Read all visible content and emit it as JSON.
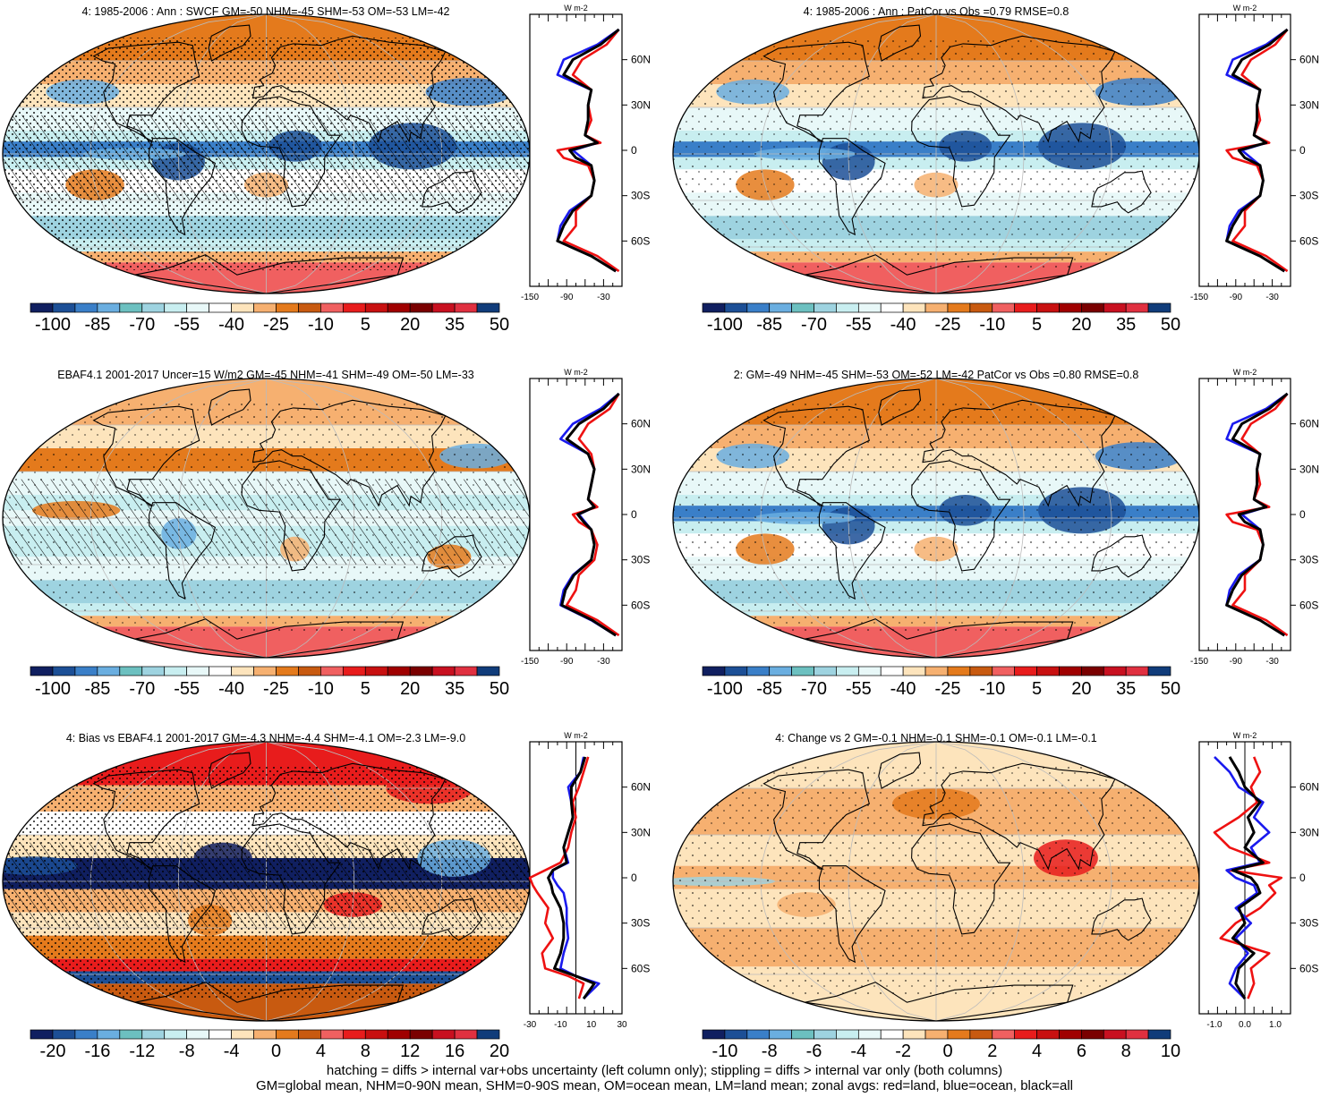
{
  "panels": [
    {
      "title": "4: 1985-2006 : Ann : SWCF GM=-50 NHM=-45 SHM=-53 OM=-53 LM=-42",
      "colorbar": {
        "palette": "main",
        "labels": [
          "-100",
          "-85",
          "-70",
          "-55",
          "-40",
          "-25",
          "-10",
          "5",
          "20",
          "35",
          "50"
        ]
      },
      "fill": "base_model",
      "hatch": true,
      "stipple": "dense",
      "zonal": {
        "unit": "W m-2",
        "xticks": [
          "-150",
          "-90",
          "-30"
        ],
        "xrange": [
          -150,
          0
        ],
        "zero_line": false,
        "lat": [
          80,
          70,
          60,
          50,
          40,
          30,
          20,
          10,
          5,
          0,
          -5,
          -10,
          -20,
          -30,
          -40,
          -50,
          -60,
          -70,
          -80
        ],
        "land": [
          -5,
          -25,
          -65,
          -80,
          -50,
          -55,
          -50,
          -60,
          -35,
          -105,
          -95,
          -55,
          -45,
          -50,
          -75,
          -75,
          -95,
          -40,
          -5
        ],
        "ocean": [
          -5,
          -40,
          -95,
          -105,
          -50,
          -55,
          -55,
          -60,
          -40,
          -80,
          -65,
          -50,
          -45,
          -50,
          -85,
          -100,
          -105,
          -50,
          -10
        ],
        "all": [
          -5,
          -35,
          -80,
          -95,
          -50,
          -55,
          -55,
          -60,
          -40,
          -85,
          -75,
          -50,
          -45,
          -50,
          -80,
          -95,
          -105,
          -50,
          -10
        ]
      }
    },
    {
      "title": "4: 1985-2006 : Ann : PatCor vs Obs =0.79 RMSE=0.8",
      "colorbar": {
        "palette": "main",
        "labels": [
          "-100",
          "-85",
          "-70",
          "-55",
          "-40",
          "-25",
          "-10",
          "5",
          "20",
          "35",
          "50"
        ]
      },
      "fill": "base_model",
      "hatch": false,
      "stipple": "sparse",
      "zonal": {
        "unit": "W m-2",
        "xticks": [
          "-150",
          "-90",
          "-30"
        ],
        "xrange": [
          -150,
          0
        ],
        "zero_line": false,
        "lat": [
          80,
          70,
          60,
          50,
          40,
          30,
          20,
          10,
          5,
          0,
          -5,
          -10,
          -20,
          -30,
          -40,
          -50,
          -60,
          -70,
          -80
        ],
        "land": [
          -5,
          -25,
          -65,
          -80,
          -50,
          -55,
          -50,
          -60,
          -35,
          -105,
          -95,
          -55,
          -45,
          -50,
          -75,
          -75,
          -95,
          -40,
          -5
        ],
        "ocean": [
          -5,
          -40,
          -95,
          -105,
          -50,
          -55,
          -55,
          -60,
          -40,
          -80,
          -65,
          -50,
          -45,
          -50,
          -85,
          -100,
          -105,
          -50,
          -10
        ],
        "all": [
          -5,
          -35,
          -80,
          -95,
          -50,
          -55,
          -55,
          -60,
          -40,
          -85,
          -75,
          -50,
          -45,
          -50,
          -80,
          -95,
          -105,
          -50,
          -10
        ]
      }
    },
    {
      "title": "EBAF4.1 2001-2017 Uncer=15 W/m2 GM=-45 NHM=-41 SHM=-49 OM=-50 LM=-33",
      "colorbar": {
        "palette": "main",
        "labels": [
          "-100",
          "-85",
          "-70",
          "-55",
          "-40",
          "-25",
          "-10",
          "5",
          "20",
          "35",
          "50"
        ]
      },
      "fill": "obs",
      "hatch": true,
      "stipple": "sparse",
      "zonal": {
        "unit": "W m-2",
        "xticks": [
          "-150",
          "-90",
          "-30"
        ],
        "xrange": [
          -150,
          0
        ],
        "zero_line": false,
        "lat": [
          80,
          70,
          60,
          50,
          40,
          30,
          20,
          10,
          5,
          0,
          -5,
          -10,
          -20,
          -30,
          -40,
          -50,
          -60,
          -70,
          -80
        ],
        "land": [
          -5,
          -20,
          -55,
          -70,
          -50,
          -45,
          -50,
          -55,
          -40,
          -80,
          -70,
          -50,
          -40,
          -45,
          -70,
          -75,
          -90,
          -40,
          -5
        ],
        "ocean": [
          -5,
          -35,
          -80,
          -100,
          -55,
          -45,
          -50,
          -55,
          -45,
          -70,
          -60,
          -50,
          -45,
          -50,
          -80,
          -95,
          -100,
          -50,
          -10
        ],
        "all": [
          -5,
          -30,
          -70,
          -90,
          -55,
          -45,
          -50,
          -55,
          -45,
          -72,
          -62,
          -50,
          -45,
          -50,
          -78,
          -92,
          -98,
          -48,
          -10
        ]
      }
    },
    {
      "title": "2: GM=-49 NHM=-45 SHM=-53 OM=-52 LM=-42 PatCor vs Obs =0.80 RMSE=0.8",
      "colorbar": {
        "palette": "main",
        "labels": [
          "-100",
          "-85",
          "-70",
          "-55",
          "-40",
          "-25",
          "-10",
          "5",
          "20",
          "35",
          "50"
        ]
      },
      "fill": "base_model",
      "hatch": false,
      "stipple": "sparse",
      "zonal": {
        "unit": "W m-2",
        "xticks": [
          "-150",
          "-90",
          "-30"
        ],
        "xrange": [
          -150,
          0
        ],
        "zero_line": false,
        "lat": [
          80,
          70,
          60,
          50,
          40,
          30,
          20,
          10,
          5,
          0,
          -5,
          -10,
          -20,
          -30,
          -40,
          -50,
          -60,
          -70,
          -80
        ],
        "land": [
          -5,
          -25,
          -65,
          -80,
          -50,
          -55,
          -50,
          -60,
          -35,
          -105,
          -95,
          -55,
          -45,
          -50,
          -75,
          -75,
          -95,
          -40,
          -5
        ],
        "ocean": [
          -5,
          -40,
          -95,
          -105,
          -50,
          -55,
          -55,
          -60,
          -40,
          -80,
          -65,
          -50,
          -45,
          -50,
          -85,
          -100,
          -105,
          -50,
          -10
        ],
        "all": [
          -5,
          -35,
          -80,
          -95,
          -50,
          -55,
          -55,
          -60,
          -40,
          -85,
          -75,
          -50,
          -45,
          -50,
          -80,
          -95,
          -105,
          -50,
          -10
        ]
      }
    },
    {
      "title": "4: Bias vs EBAF4.1 2001-2017 GM=-4.3 NHM=-4.4 SHM=-4.1 OM=-2.3 LM=-9.0",
      "colorbar": {
        "palette": "main",
        "labels": [
          "-20",
          "-16",
          "-12",
          "-8",
          "-4",
          "0",
          "4",
          "8",
          "12",
          "16",
          "20"
        ]
      },
      "fill": "bias",
      "hatch": true,
      "stipple": "dense",
      "zonal": {
        "unit": "W m-2",
        "xticks": [
          "-30",
          "-10",
          "10",
          "30"
        ],
        "xrange": [
          -30,
          30
        ],
        "zero_line": true,
        "lat": [
          80,
          70,
          60,
          50,
          40,
          30,
          20,
          10,
          5,
          0,
          -5,
          -10,
          -20,
          -30,
          -40,
          -50,
          -60,
          -65,
          -70,
          -80
        ],
        "land": [
          8,
          5,
          2,
          -2,
          0,
          -3,
          -5,
          -10,
          -20,
          -30,
          -28,
          -25,
          -18,
          -20,
          -15,
          -22,
          -20,
          -5,
          5,
          2
        ],
        "ocean": [
          5,
          3,
          -5,
          -3,
          -2,
          -5,
          -8,
          -5,
          -15,
          -15,
          -12,
          -8,
          -6,
          -6,
          -5,
          -8,
          -10,
          0,
          15,
          5
        ],
        "all": [
          6,
          3,
          -3,
          -3,
          -2,
          -5,
          -8,
          -6,
          -15,
          -18,
          -16,
          -15,
          -10,
          -8,
          -8,
          -10,
          -14,
          0,
          12,
          5
        ]
      }
    },
    {
      "title": "4: Change vs 2 GM=-0.1 NHM=-0.1 SHM=-0.1 OM=-0.1 LM=-0.1",
      "colorbar": {
        "palette": "main",
        "labels": [
          "-10",
          "-8",
          "-6",
          "-4",
          "-2",
          "0",
          "2",
          "4",
          "6",
          "8",
          "10"
        ]
      },
      "fill": "change",
      "hatch": false,
      "stipple": "sparse",
      "zonal": {
        "unit": "W m-2",
        "xticks": [
          "-1.0",
          "0.0",
          "1.0"
        ],
        "xrange": [
          -1.5,
          1.5
        ],
        "zero_line": true,
        "lat": [
          80,
          70,
          60,
          50,
          40,
          30,
          20,
          10,
          5,
          0,
          -5,
          -10,
          -20,
          -30,
          -40,
          -50,
          -60,
          -70,
          -80
        ],
        "land": [
          0.3,
          0.5,
          0.2,
          0.4,
          -0.2,
          -1.0,
          -0.5,
          0.8,
          -0.5,
          1.2,
          0.8,
          1.0,
          0.5,
          -0.3,
          -0.8,
          0.8,
          0.2,
          0.3,
          0.1
        ],
        "ocean": [
          -1.0,
          -0.5,
          -0.2,
          0.6,
          0.3,
          0.8,
          0.2,
          0.5,
          -0.6,
          -0.3,
          0.3,
          0.4,
          -0.3,
          0.2,
          -0.3,
          0.1,
          -0.3,
          -0.5,
          0.0
        ],
        "all": [
          -0.5,
          -0.2,
          0.0,
          0.5,
          0.1,
          0.3,
          0.0,
          0.6,
          -0.4,
          0.2,
          0.4,
          0.5,
          -0.2,
          0.0,
          -0.4,
          0.3,
          -0.2,
          -0.3,
          0.0
        ]
      }
    }
  ],
  "lat_labels": [
    "60N",
    "30N",
    "0",
    "30S",
    "60S"
  ],
  "colors": {
    "land": "#ee1111",
    "ocean": "#1a1aee",
    "all": "#000000",
    "main_palette": [
      "#101f60",
      "#1c4f96",
      "#3a7fc8",
      "#6aaee0",
      "#6cc0c0",
      "#9ed3e0",
      "#c8eef0",
      "#e8f8f8",
      "#ffffff",
      "#fde4bc",
      "#f6b070",
      "#e47a1c",
      "#c85a10",
      "#f06060",
      "#e81c1c",
      "#c81010",
      "#a00000",
      "#7a0000",
      "#c81020",
      "#e03040",
      "#103c7a"
    ]
  },
  "footer": {
    "line1": "hatching = diffs > internal var+obs uncertainty (left column only); stippling = diffs > internal var only (both columns)",
    "line2": "GM=global mean, NHM=0-90N mean, SHM=0-90S mean, OM=ocean mean, LM=land mean; zonal avgs: red=land, blue=ocean, black=all"
  }
}
